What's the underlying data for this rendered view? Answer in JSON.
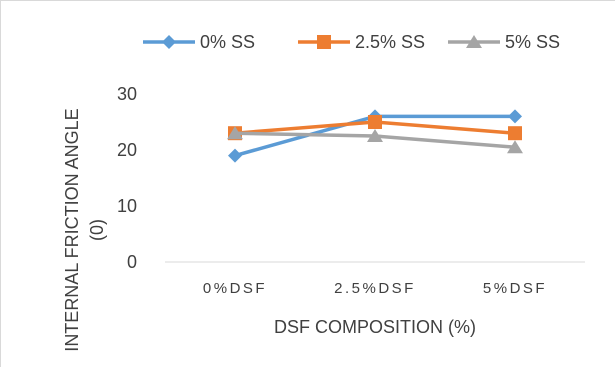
{
  "chart_data": {
    "type": "line",
    "title": "",
    "xlabel": "DSF COMPOSITION (%)",
    "ylabel": [
      "INTERNAL FRICTION ANGLE",
      "(0)"
    ],
    "categories": [
      "0%DSF",
      "2.5%DSF",
      "5%DSF"
    ],
    "ylim": [
      0,
      30
    ],
    "yticks": [
      0,
      10,
      20,
      30
    ],
    "grid": false,
    "legend_position": "top",
    "series": [
      {
        "name": "0% SS",
        "values": [
          19,
          26,
          26
        ],
        "color": "#5b9bd5",
        "marker": "diamond"
      },
      {
        "name": "2.5% SS",
        "values": [
          23,
          25,
          23
        ],
        "color": "#ed7d31",
        "marker": "square"
      },
      {
        "name": "5% SS",
        "values": [
          23,
          22.5,
          20.5
        ],
        "color": "#a5a5a5",
        "marker": "triangle"
      }
    ]
  }
}
